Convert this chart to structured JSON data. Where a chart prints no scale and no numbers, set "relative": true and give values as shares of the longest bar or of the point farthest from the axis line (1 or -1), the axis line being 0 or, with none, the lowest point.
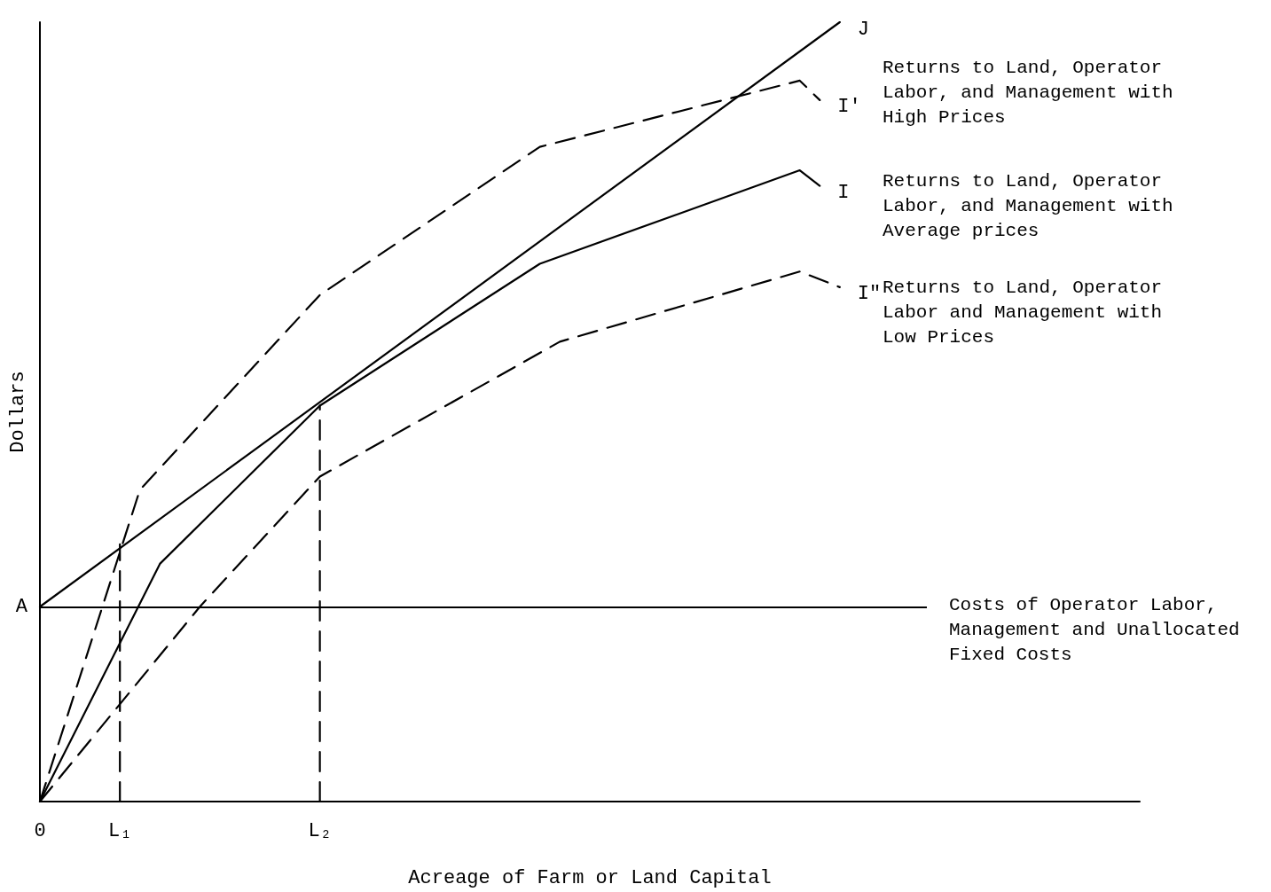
{
  "chart_data": {
    "type": "line",
    "relative": true,
    "xlabel": "Acreage of Farm or Land Capital",
    "ylabel": "Dollars",
    "categories": [
      "0",
      null,
      null,
      null,
      "L₁",
      null,
      null,
      null,
      null,
      null,
      null,
      null,
      null,
      null,
      "L₂",
      null,
      null,
      null,
      null,
      null,
      null,
      null,
      null,
      null,
      null,
      null,
      null,
      null,
      null,
      null,
      null,
      null,
      null,
      null,
      null,
      null,
      null,
      null,
      null,
      null,
      null,
      null,
      null,
      null,
      null,
      null,
      null,
      null,
      null,
      null,
      null,
      null,
      null,
      null,
      null,
      null
    ],
    "tick_labels": "x",
    "grid": false,
    "legend": false,
    "marker": "none",
    "series": [
      {
        "name": "J",
        "color": "#000000",
        "line_style": "solid",
        "values": [
          0.25,
          null,
          null,
          null,
          null,
          null,
          null,
          null,
          null,
          null,
          null,
          null,
          null,
          null,
          null,
          null,
          null,
          null,
          null,
          null,
          null,
          null,
          null,
          null,
          null,
          null,
          null,
          null,
          null,
          null,
          null,
          null,
          null,
          null,
          null,
          null,
          null,
          null,
          null,
          null,
          1.0,
          null,
          null,
          null,
          null,
          null,
          null,
          null,
          null,
          null,
          null,
          null,
          null,
          null,
          null,
          null
        ]
      },
      {
        "name": "I'",
        "color": "#000000",
        "line_style": "dashed",
        "values": [
          0,
          null,
          null,
          null,
          null,
          0.4,
          null,
          null,
          null,
          null,
          null,
          null,
          null,
          null,
          0.65,
          null,
          null,
          null,
          null,
          null,
          null,
          null,
          null,
          null,
          null,
          0.84,
          null,
          null,
          null,
          null,
          null,
          null,
          null,
          null,
          null,
          null,
          null,
          null,
          0.925,
          0.9,
          null,
          null,
          null,
          null,
          null,
          null,
          null,
          null,
          null,
          null,
          null,
          null,
          null,
          null,
          null,
          null
        ]
      },
      {
        "name": "I",
        "color": "#000000",
        "line_style": "solid",
        "values": [
          0,
          null,
          null,
          null,
          null,
          null,
          0.305,
          null,
          null,
          null,
          null,
          null,
          null,
          null,
          0.508,
          null,
          null,
          null,
          null,
          null,
          null,
          null,
          null,
          null,
          null,
          0.69,
          null,
          null,
          null,
          null,
          null,
          null,
          null,
          null,
          null,
          null,
          null,
          null,
          0.81,
          0.79,
          null,
          null,
          null,
          null,
          null,
          null,
          null,
          null,
          null,
          null,
          null,
          null,
          null,
          null,
          null,
          null
        ]
      },
      {
        "name": "I\"",
        "color": "#000000",
        "line_style": "dashed",
        "values": [
          0,
          null,
          null,
          null,
          null,
          null,
          null,
          null,
          0.25,
          null,
          null,
          null,
          null,
          null,
          0.417,
          null,
          null,
          null,
          null,
          null,
          null,
          null,
          null,
          null,
          null,
          null,
          0.59,
          null,
          null,
          null,
          null,
          null,
          null,
          null,
          null,
          null,
          null,
          null,
          0.68,
          null,
          0.66,
          null,
          null,
          null,
          null,
          null,
          null,
          null,
          null,
          null,
          null,
          null,
          null,
          null,
          null,
          null
        ]
      },
      {
        "color": "#000000",
        "line_style": "dashed",
        "x": [
          "L₁",
          "L₁"
        ],
        "values": [
          0,
          0.33
        ]
      },
      {
        "color": "#000000",
        "line_style": "dashed",
        "x": [
          "L₂",
          "L₂"
        ],
        "values": [
          0,
          0.508
        ]
      }
    ],
    "ref_lines": [
      {
        "axis": "y",
        "value": 0.25,
        "label": "A"
      }
    ],
    "annotations": [
      "Returns to Land, Operator Labor, and Management with High Prices",
      "Returns to Land, Operator Labor, and Management with Average prices",
      "Returns to Land, Operator Labor and Management with Low Prices",
      "Costs of Operator Labor, Management and Unallocated Fixed Costs"
    ]
  }
}
